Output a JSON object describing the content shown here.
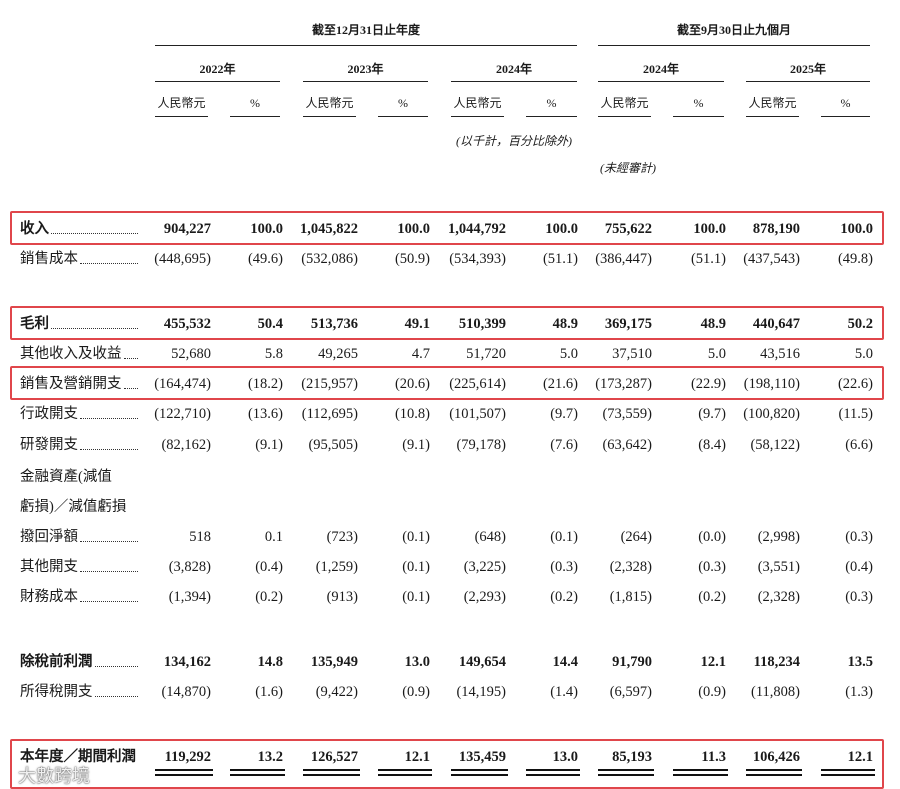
{
  "header": {
    "groups": [
      "截至12月31日止年度",
      "截至9月30日止九個月"
    ],
    "years": [
      "2022年",
      "2023年",
      "2024年",
      "2024年",
      "2025年"
    ],
    "currency": "人民幣元",
    "percent": "%",
    "note": "(以千計，百分比除外)",
    "unaudited": "(未經審計)"
  },
  "table": {
    "rows": [
      {
        "label": [
          "收入"
        ],
        "bold": true,
        "highlight": true,
        "values": [
          "904,227",
          "100.0",
          "1,045,822",
          "100.0",
          "1,044,792",
          "100.0",
          "755,622",
          "100.0",
          "878,190",
          "100.0"
        ]
      },
      {
        "label": [
          "銷售成本"
        ],
        "bold": false,
        "highlight": false,
        "values": [
          "(448,695)",
          "(49.6)",
          "(532,086)",
          "(50.9)",
          "(534,393)",
          "(51.1)",
          "(386,447)",
          "(51.1)",
          "(437,543)",
          "(49.8)"
        ]
      },
      {
        "label": [
          "毛利"
        ],
        "bold": true,
        "highlight": true,
        "values": [
          "455,532",
          "50.4",
          "513,736",
          "49.1",
          "510,399",
          "48.9",
          "369,175",
          "48.9",
          "440,647",
          "50.2"
        ]
      },
      {
        "label": [
          "其他收入及收益"
        ],
        "bold": false,
        "highlight": false,
        "values": [
          "52,680",
          "5.8",
          "49,265",
          "4.7",
          "51,720",
          "5.0",
          "37,510",
          "5.0",
          "43,516",
          "5.0"
        ]
      },
      {
        "label": [
          "銷售及營銷開支"
        ],
        "bold": false,
        "highlight": true,
        "values": [
          "(164,474)",
          "(18.2)",
          "(215,957)",
          "(20.6)",
          "(225,614)",
          "(21.6)",
          "(173,287)",
          "(22.9)",
          "(198,110)",
          "(22.6)"
        ]
      },
      {
        "label": [
          "行政開支"
        ],
        "bold": false,
        "highlight": false,
        "values": [
          "(122,710)",
          "(13.6)",
          "(112,695)",
          "(10.8)",
          "(101,507)",
          "(9.7)",
          "(73,559)",
          "(9.7)",
          "(100,820)",
          "(11.5)"
        ]
      },
      {
        "label": [
          "研發開支"
        ],
        "bold": false,
        "highlight": false,
        "values": [
          "(82,162)",
          "(9.1)",
          "(95,505)",
          "(9.1)",
          "(79,178)",
          "(7.6)",
          "(63,642)",
          "(8.4)",
          "(58,122)",
          "(6.6)"
        ]
      },
      {
        "label": [
          "金融資產(減值",
          "虧損)／減值虧損",
          "撥回淨額"
        ],
        "bold": false,
        "highlight": false,
        "values": [
          "518",
          "0.1",
          "(723)",
          "(0.1)",
          "(648)",
          "(0.1)",
          "(264)",
          "(0.0)",
          "(2,998)",
          "(0.3)"
        ]
      },
      {
        "label": [
          "其他開支"
        ],
        "bold": false,
        "highlight": false,
        "values": [
          "(3,828)",
          "(0.4)",
          "(1,259)",
          "(0.1)",
          "(3,225)",
          "(0.3)",
          "(2,328)",
          "(0.3)",
          "(3,551)",
          "(0.4)"
        ]
      },
      {
        "label": [
          "財務成本"
        ],
        "bold": false,
        "highlight": false,
        "values": [
          "(1,394)",
          "(0.2)",
          "(913)",
          "(0.1)",
          "(2,293)",
          "(0.2)",
          "(1,815)",
          "(0.2)",
          "(2,328)",
          "(0.3)"
        ]
      },
      {
        "label": [
          "除稅前利潤"
        ],
        "bold": true,
        "highlight": false,
        "values": [
          "134,162",
          "14.8",
          "135,949",
          "13.0",
          "149,654",
          "14.4",
          "91,790",
          "12.1",
          "118,234",
          "13.5"
        ]
      },
      {
        "label": [
          "所得稅開支"
        ],
        "bold": false,
        "highlight": false,
        "values": [
          "(14,870)",
          "(1.6)",
          "(9,422)",
          "(0.9)",
          "(14,195)",
          "(1.4)",
          "(6,597)",
          "(0.9)",
          "(11,808)",
          "(1.3)"
        ]
      },
      {
        "label": [
          "本年度／期間利潤"
        ],
        "bold": true,
        "highlight": true,
        "values": [
          "119,292",
          "13.2",
          "126,527",
          "12.1",
          "135,459",
          "13.0",
          "85,193",
          "11.3",
          "106,426",
          "12.1"
        ]
      }
    ]
  },
  "watermark": "大數跨境"
}
